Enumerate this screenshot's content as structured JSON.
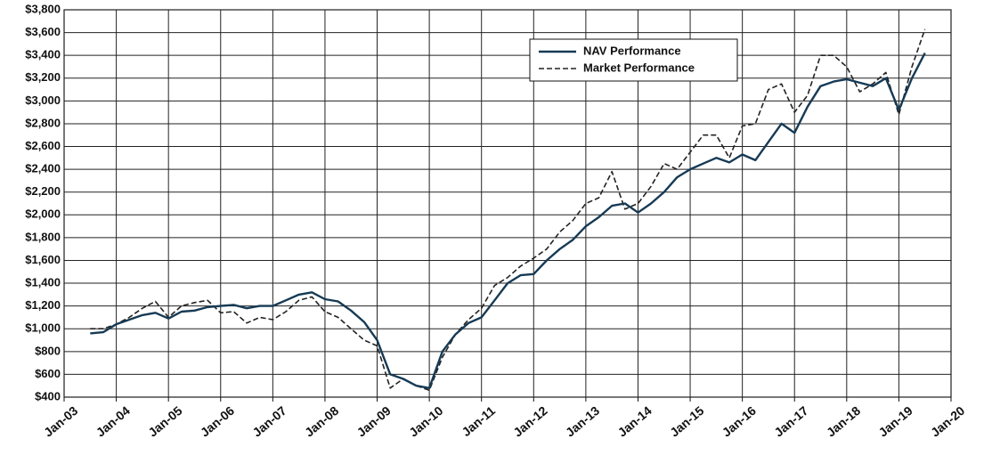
{
  "chart_data": {
    "type": "line",
    "x": [
      "2003-07",
      "2003-10",
      "2004-01",
      "2004-04",
      "2004-07",
      "2004-10",
      "2005-01",
      "2005-04",
      "2005-07",
      "2005-10",
      "2006-01",
      "2006-04",
      "2006-07",
      "2006-10",
      "2007-01",
      "2007-04",
      "2007-07",
      "2007-10",
      "2008-01",
      "2008-04",
      "2008-07",
      "2008-10",
      "2009-01",
      "2009-04",
      "2009-07",
      "2009-10",
      "2010-01",
      "2010-04",
      "2010-07",
      "2010-10",
      "2011-01",
      "2011-04",
      "2011-07",
      "2011-10",
      "2012-01",
      "2012-04",
      "2012-07",
      "2012-10",
      "2013-01",
      "2013-04",
      "2013-07",
      "2013-10",
      "2014-01",
      "2014-04",
      "2014-07",
      "2014-10",
      "2015-01",
      "2015-04",
      "2015-07",
      "2015-10",
      "2016-01",
      "2016-04",
      "2016-07",
      "2016-10",
      "2017-01",
      "2017-04",
      "2017-07",
      "2017-10",
      "2018-01",
      "2018-04",
      "2018-07",
      "2018-10",
      "2019-01",
      "2019-04",
      "2019-07"
    ],
    "series": [
      {
        "name": "NAV Performance",
        "color": "#163a55",
        "style": "solid",
        "values": [
          960,
          970,
          1040,
          1080,
          1120,
          1140,
          1090,
          1150,
          1160,
          1190,
          1200,
          1210,
          1180,
          1200,
          1200,
          1250,
          1300,
          1320,
          1260,
          1240,
          1160,
          1060,
          900,
          600,
          560,
          500,
          480,
          800,
          950,
          1050,
          1100,
          1250,
          1400,
          1470,
          1480,
          1600,
          1700,
          1780,
          1900,
          1980,
          2080,
          2100,
          2020,
          2100,
          2200,
          2330,
          2400,
          2450,
          2500,
          2460,
          2530,
          2480,
          2640,
          2800,
          2720,
          2950,
          3130,
          3170,
          3190,
          3160,
          3130,
          3200,
          2920,
          3200,
          3420
        ]
      },
      {
        "name": "Market Performance",
        "color": "#222222",
        "style": "dashed",
        "values": [
          1000,
          1000,
          1040,
          1100,
          1180,
          1240,
          1100,
          1200,
          1230,
          1250,
          1140,
          1150,
          1050,
          1100,
          1080,
          1150,
          1250,
          1280,
          1150,
          1100,
          1000,
          900,
          850,
          480,
          560,
          500,
          460,
          750,
          950,
          1080,
          1180,
          1380,
          1450,
          1550,
          1620,
          1700,
          1850,
          1950,
          2100,
          2150,
          2380,
          2050,
          2100,
          2250,
          2450,
          2400,
          2550,
          2700,
          2700,
          2500,
          2780,
          2800,
          3100,
          3150,
          2900,
          3050,
          3400,
          3400,
          3300,
          3080,
          3150,
          3250,
          2880,
          3300,
          3630
        ]
      }
    ],
    "xlim": [
      "2003-01",
      "2020-01"
    ],
    "xticks": [
      {
        "value": "2003-01",
        "label": "Jan-03"
      },
      {
        "value": "2004-01",
        "label": "Jan-04"
      },
      {
        "value": "2005-01",
        "label": "Jan-05"
      },
      {
        "value": "2006-01",
        "label": "Jan-06"
      },
      {
        "value": "2007-01",
        "label": "Jan-07"
      },
      {
        "value": "2008-01",
        "label": "Jan-08"
      },
      {
        "value": "2009-01",
        "label": "Jan-09"
      },
      {
        "value": "2010-01",
        "label": "Jan-10"
      },
      {
        "value": "2011-01",
        "label": "Jan-11"
      },
      {
        "value": "2012-01",
        "label": "Jan-12"
      },
      {
        "value": "2013-01",
        "label": "Jan-13"
      },
      {
        "value": "2014-01",
        "label": "Jan-14"
      },
      {
        "value": "2015-01",
        "label": "Jan-15"
      },
      {
        "value": "2016-01",
        "label": "Jan-16"
      },
      {
        "value": "2017-01",
        "label": "Jan-17"
      },
      {
        "value": "2018-01",
        "label": "Jan-18"
      },
      {
        "value": "2019-01",
        "label": "Jan-19"
      },
      {
        "value": "2020-01",
        "label": "Jan-20"
      }
    ],
    "ylim": [
      400,
      3800
    ],
    "yticks": [
      {
        "value": 400,
        "label": "$400"
      },
      {
        "value": 600,
        "label": "$600"
      },
      {
        "value": 800,
        "label": "$800"
      },
      {
        "value": 1000,
        "label": "$1,000"
      },
      {
        "value": 1200,
        "label": "$1,200"
      },
      {
        "value": 1400,
        "label": "$1,400"
      },
      {
        "value": 1600,
        "label": "$1,600"
      },
      {
        "value": 1800,
        "label": "$1,800"
      },
      {
        "value": 2000,
        "label": "$2,000"
      },
      {
        "value": 2200,
        "label": "$2,200"
      },
      {
        "value": 2400,
        "label": "$2,400"
      },
      {
        "value": 2600,
        "label": "$2,600"
      },
      {
        "value": 2800,
        "label": "$2,800"
      },
      {
        "value": 3000,
        "label": "$3,000"
      },
      {
        "value": 3200,
        "label": "$3,200"
      },
      {
        "value": 3400,
        "label": "$3,400"
      },
      {
        "value": 3600,
        "label": "$3,600"
      },
      {
        "value": 3800,
        "label": "$3,800"
      }
    ],
    "grid": true,
    "legend": "upper-right"
  }
}
